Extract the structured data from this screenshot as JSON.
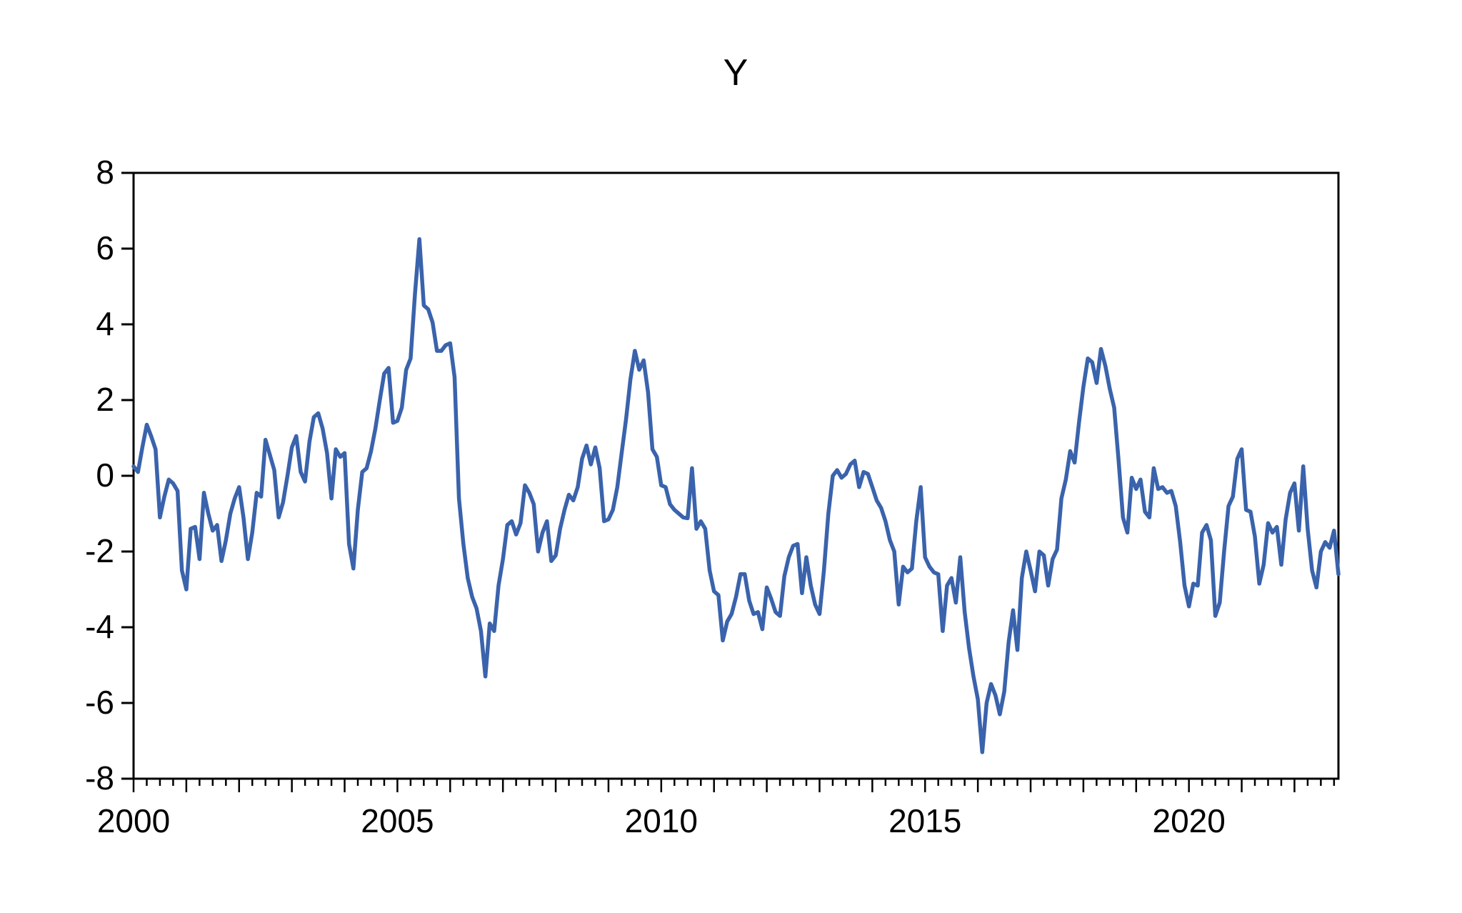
{
  "title": "Y",
  "chart_data": {
    "type": "line",
    "title": "Y",
    "series_name": "Y",
    "frequency": "monthly",
    "start_period": "2000M01",
    "end_period": "2022M11",
    "start_year": 2000,
    "x_tick_label_years": [
      2000,
      2005,
      2010,
      2015,
      2020
    ],
    "y_tick_labels": [
      "8",
      "6",
      "4",
      "2",
      "0",
      "-2",
      "-4",
      "-6",
      "-8"
    ],
    "ylim": [
      -8,
      8
    ],
    "grid": false,
    "legend_position": "none",
    "line_color": "#3a63ac",
    "axis_color": "#000000",
    "values": [
      0.25,
      0.1,
      0.75,
      1.35,
      1.05,
      0.7,
      -1.1,
      -0.55,
      -0.1,
      -0.2,
      -0.4,
      -2.5,
      -3.0,
      -1.4,
      -1.35,
      -2.2,
      -0.45,
      -1.0,
      -1.45,
      -1.3,
      -2.25,
      -1.7,
      -1.0,
      -0.6,
      -0.3,
      -1.1,
      -2.2,
      -1.5,
      -0.45,
      -0.55,
      0.95,
      0.55,
      0.15,
      -1.1,
      -0.7,
      0.0,
      0.75,
      1.05,
      0.1,
      -0.15,
      0.9,
      1.55,
      1.65,
      1.25,
      0.6,
      -0.6,
      0.7,
      0.5,
      0.6,
      -1.8,
      -2.45,
      -0.9,
      0.1,
      0.2,
      0.65,
      1.25,
      2.0,
      2.7,
      2.85,
      1.4,
      1.45,
      1.8,
      2.8,
      3.1,
      4.8,
      6.25,
      4.5,
      4.4,
      4.05,
      3.3,
      3.3,
      3.45,
      3.5,
      2.6,
      -0.6,
      -1.8,
      -2.7,
      -3.2,
      -3.5,
      -4.1,
      -5.3,
      -3.9,
      -4.1,
      -2.9,
      -2.2,
      -1.3,
      -1.2,
      -1.55,
      -1.25,
      -0.25,
      -0.45,
      -0.75,
      -2.0,
      -1.5,
      -1.2,
      -2.25,
      -2.1,
      -1.4,
      -0.9,
      -0.5,
      -0.65,
      -0.3,
      0.45,
      0.8,
      0.3,
      0.75,
      0.2,
      -1.2,
      -1.15,
      -0.9,
      -0.3,
      0.6,
      1.5,
      2.55,
      3.3,
      2.8,
      3.05,
      2.2,
      0.7,
      0.5,
      -0.25,
      -0.3,
      -0.75,
      -0.9,
      -1.0,
      -1.1,
      -1.12,
      0.2,
      -1.4,
      -1.2,
      -1.4,
      -2.5,
      -3.05,
      -3.15,
      -4.35,
      -3.85,
      -3.65,
      -3.2,
      -2.6,
      -2.6,
      -3.3,
      -3.65,
      -3.6,
      -4.05,
      -2.95,
      -3.25,
      -3.6,
      -3.7,
      -2.65,
      -2.15,
      -1.85,
      -1.8,
      -3.1,
      -2.15,
      -2.9,
      -3.4,
      -3.65,
      -2.5,
      -1.0,
      0.0,
      0.15,
      -0.05,
      0.05,
      0.3,
      0.4,
      -0.3,
      0.1,
      0.05,
      -0.3,
      -0.65,
      -0.85,
      -1.2,
      -1.7,
      -2.0,
      -3.4,
      -2.4,
      -2.55,
      -2.45,
      -1.2,
      -0.3,
      -2.15,
      -2.4,
      -2.55,
      -2.6,
      -4.1,
      -2.9,
      -2.7,
      -3.35,
      -2.15,
      -3.6,
      -4.55,
      -5.3,
      -5.9,
      -7.3,
      -6.0,
      -5.5,
      -5.8,
      -6.3,
      -5.7,
      -4.4,
      -3.55,
      -4.6,
      -2.7,
      -2.0,
      -2.5,
      -3.05,
      -2.0,
      -2.1,
      -2.9,
      -2.2,
      -1.95,
      -0.6,
      -0.1,
      0.65,
      0.35,
      1.4,
      2.35,
      3.1,
      3.0,
      2.45,
      3.35,
      2.9,
      2.3,
      1.8,
      0.4,
      -1.1,
      -1.5,
      -0.05,
      -0.35,
      -0.1,
      -0.95,
      -1.1,
      0.2,
      -0.35,
      -0.3,
      -0.45,
      -0.4,
      -0.8,
      -1.75,
      -2.9,
      -3.45,
      -2.85,
      -2.9,
      -1.5,
      -1.3,
      -1.7,
      -3.7,
      -3.35,
      -2.0,
      -0.8,
      -0.55,
      0.45,
      0.7,
      -0.9,
      -0.95,
      -1.6,
      -2.85,
      -2.35,
      -1.25,
      -1.5,
      -1.35,
      -2.35,
      -1.15,
      -0.45,
      -0.2,
      -1.45,
      0.25,
      -1.4,
      -2.5,
      -2.95,
      -2.0,
      -1.75,
      -1.9,
      -1.45,
      -2.6
    ]
  }
}
